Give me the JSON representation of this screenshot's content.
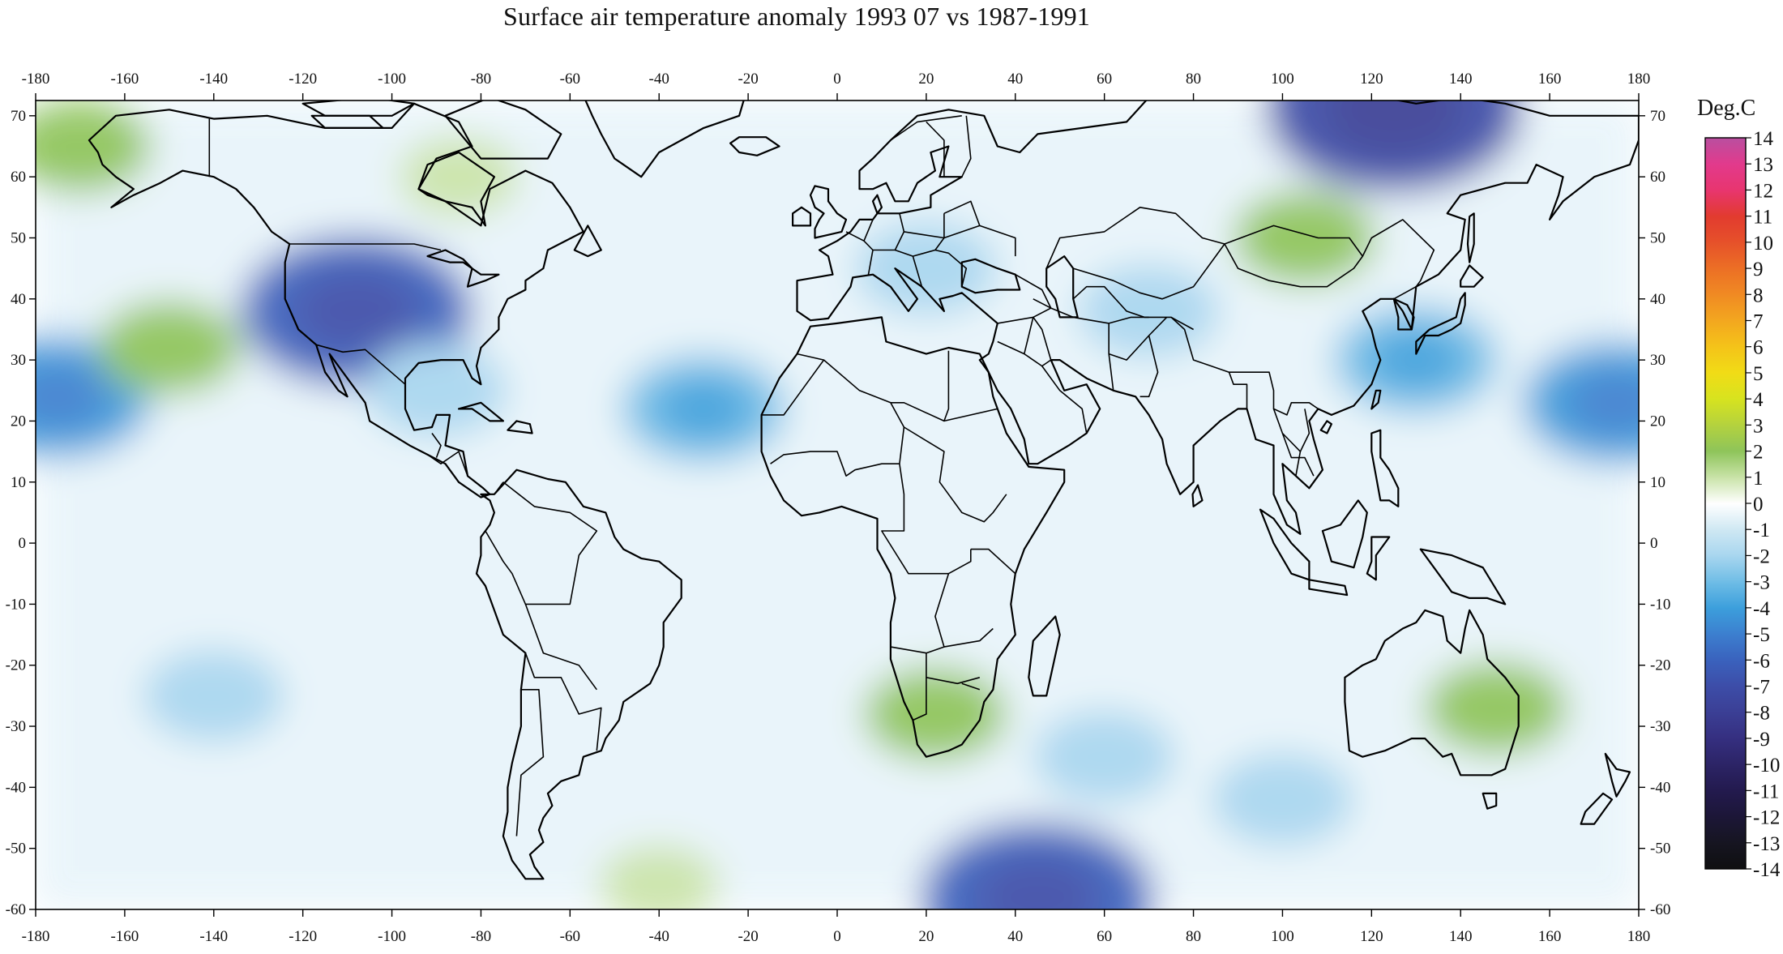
{
  "title": "Surface air temperature anomaly 1993 07 vs 1987-1991",
  "colorbar": {
    "label": "Deg.C",
    "levels": [
      14,
      13,
      12,
      11,
      10,
      9,
      8,
      7,
      6,
      5,
      4,
      3,
      2,
      1,
      0,
      -1,
      -2,
      -3,
      -4,
      -5,
      -6,
      -7,
      -8,
      -9,
      -10,
      -11,
      -12,
      -13,
      -14
    ],
    "colors": [
      "#b94fa0",
      "#e23a8c",
      "#e8356f",
      "#e23b2f",
      "#e6512a",
      "#ec6f25",
      "#f08a23",
      "#f3a71f",
      "#f4c319",
      "#f1dc16",
      "#d7e31f",
      "#b4d23e",
      "#8ec45a",
      "#c9e3a8",
      "#ffffff",
      "#cfe8f3",
      "#a8d6ef",
      "#6fbde6",
      "#3c9fdc",
      "#3c7fcf",
      "#3a62bd",
      "#3d4da8",
      "#3b3f95",
      "#352f80",
      "#2c2466",
      "#231a4e",
      "#1c1637",
      "#161521",
      "#0f0f10"
    ]
  },
  "longitude_ticks": [
    "-180",
    "-160",
    "-140",
    "-120",
    "-100",
    "-80",
    "-60",
    "-40",
    "-20",
    "0",
    "20",
    "40",
    "60",
    "80",
    "100",
    "120",
    "140",
    "160",
    "180"
  ],
  "latitude_ticks": [
    "70",
    "60",
    "50",
    "40",
    "30",
    "20",
    "10",
    "0",
    "-10",
    "-20",
    "-30",
    "-40",
    "-50",
    "-60"
  ],
  "anomaly_regions": [
    {
      "lon": -108,
      "lat": 38,
      "value": -6
    },
    {
      "lon": -90,
      "lat": 25,
      "value": -2
    },
    {
      "lon": -30,
      "lat": 22,
      "value": -3
    },
    {
      "lon": 20,
      "lat": 45,
      "value": -2
    },
    {
      "lon": 70,
      "lat": 38,
      "value": -2
    },
    {
      "lon": 130,
      "lat": 30,
      "value": -3
    },
    {
      "lon": 125,
      "lat": 71,
      "value": -7
    },
    {
      "lon": -175,
      "lat": 24,
      "value": -4
    },
    {
      "lon": 175,
      "lat": 23,
      "value": -4
    },
    {
      "lon": 100,
      "lat": -42,
      "value": -2
    },
    {
      "lon": 45,
      "lat": -58,
      "value": -6
    },
    {
      "lon": -140,
      "lat": -25,
      "value": -2
    },
    {
      "lon": 60,
      "lat": -35,
      "value": -2
    },
    {
      "lon": 105,
      "lat": 50,
      "value": 2
    },
    {
      "lon": -150,
      "lat": 32,
      "value": 2
    },
    {
      "lon": -170,
      "lat": 65,
      "value": 2
    },
    {
      "lon": 148,
      "lat": -27,
      "value": 2
    },
    {
      "lon": 22,
      "lat": -28,
      "value": 2
    },
    {
      "lon": -85,
      "lat": 60,
      "value": 1
    },
    {
      "lon": -40,
      "lat": -56,
      "value": 1
    }
  ]
}
